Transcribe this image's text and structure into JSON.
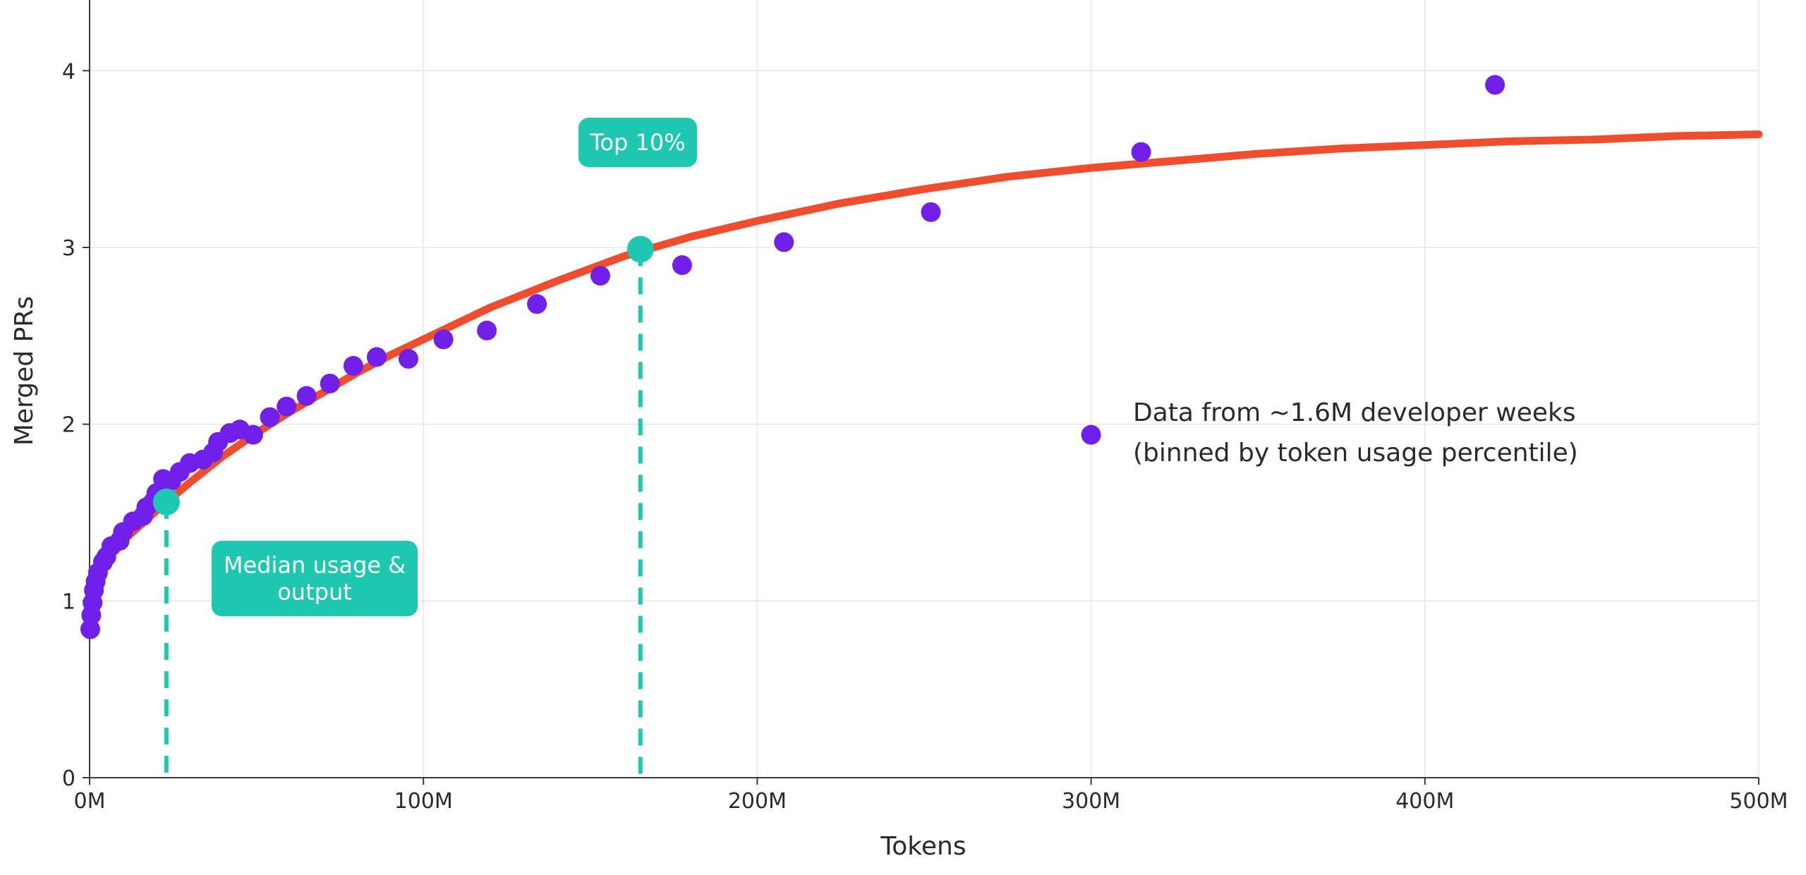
{
  "chart_data": {
    "type": "scatter",
    "xlabel": "Tokens",
    "ylabel": "Merged PRs",
    "xlim": [
      0,
      500
    ],
    "ylim": [
      0,
      4.4
    ],
    "x_unit": "M tokens",
    "x_ticks": [
      0,
      100,
      200,
      300,
      400,
      500
    ],
    "x_tick_labels": [
      "0M",
      "100M",
      "200M",
      "300M",
      "400M",
      "500M"
    ],
    "y_ticks": [
      0,
      1,
      2,
      3,
      4
    ],
    "y_tick_labels": [
      "0",
      "1",
      "2",
      "3",
      "4"
    ],
    "grid": true,
    "colors": {
      "points": "#7020e8",
      "fit": "#ef4d2d",
      "highlight": "#1ec8b0",
      "grid": "#e6e6e6",
      "axis": "#3a3a3a"
    },
    "series": [
      {
        "kind": "points",
        "points": [
          [
            0.2,
            0.84
          ],
          [
            0.5,
            0.92
          ],
          [
            0.9,
            0.99
          ],
          [
            1.3,
            1.06
          ],
          [
            1.8,
            1.11
          ],
          [
            2.5,
            1.16
          ],
          [
            4,
            1.22
          ],
          [
            5,
            1.25
          ],
          [
            6.5,
            1.31
          ],
          [
            9,
            1.34
          ],
          [
            10,
            1.39
          ],
          [
            13,
            1.45
          ],
          [
            16,
            1.48
          ],
          [
            17,
            1.53
          ],
          [
            19,
            1.56
          ],
          [
            20,
            1.61
          ],
          [
            22,
            1.69
          ],
          [
            24.5,
            1.68
          ],
          [
            27,
            1.73
          ],
          [
            30,
            1.78
          ],
          [
            34,
            1.8
          ],
          [
            37,
            1.84
          ],
          [
            38.5,
            1.9
          ],
          [
            42,
            1.95
          ],
          [
            45,
            1.97
          ],
          [
            49,
            1.94
          ],
          [
            54,
            2.04
          ],
          [
            59,
            2.1
          ],
          [
            65,
            2.16
          ],
          [
            72,
            2.23
          ],
          [
            79,
            2.33
          ],
          [
            86,
            2.38
          ],
          [
            95.5,
            2.37
          ],
          [
            106,
            2.48
          ],
          [
            119,
            2.53
          ],
          [
            134,
            2.68
          ],
          [
            153,
            2.84
          ],
          [
            177.5,
            2.9
          ],
          [
            208,
            3.03
          ],
          [
            252,
            3.2
          ],
          [
            315,
            3.54
          ],
          [
            421,
            3.92
          ],
          [
            300,
            1.94
          ]
        ]
      },
      {
        "kind": "fit",
        "points": [
          [
            1,
            1.13
          ],
          [
            5,
            1.23
          ],
          [
            10,
            1.34
          ],
          [
            20,
            1.51
          ],
          [
            30,
            1.67
          ],
          [
            40,
            1.82
          ],
          [
            50,
            1.95
          ],
          [
            60,
            2.07
          ],
          [
            70,
            2.18
          ],
          [
            80,
            2.29
          ],
          [
            90,
            2.39
          ],
          [
            100,
            2.48
          ],
          [
            120,
            2.66
          ],
          [
            140,
            2.81
          ],
          [
            160,
            2.95
          ],
          [
            180,
            3.06
          ],
          [
            200,
            3.15
          ],
          [
            225,
            3.25
          ],
          [
            250,
            3.33
          ],
          [
            275,
            3.4
          ],
          [
            300,
            3.45
          ],
          [
            325,
            3.49
          ],
          [
            350,
            3.53
          ],
          [
            375,
            3.56
          ],
          [
            400,
            3.58
          ],
          [
            425,
            3.6
          ],
          [
            450,
            3.61
          ],
          [
            475,
            3.63
          ],
          [
            500,
            3.64
          ]
        ]
      }
    ],
    "highlights": [
      {
        "x": 23,
        "y": 1.56,
        "label_lines": [
          "Median usage &",
          "output"
        ]
      },
      {
        "x": 165,
        "y": 2.99,
        "label_lines": [
          "Top 10%"
        ]
      }
    ],
    "legend": {
      "text_lines": [
        "Data from ~1.6M developer weeks",
        "(binned by token usage percentile)"
      ],
      "placement": "center-right"
    }
  }
}
